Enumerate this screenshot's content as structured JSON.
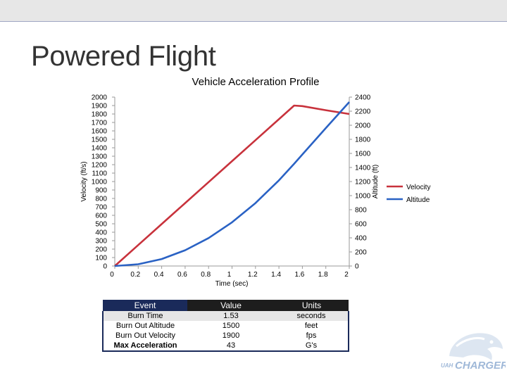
{
  "slide": {
    "title": "Powered Flight"
  },
  "colors": {
    "velocity": "#c8323c",
    "altitude": "#2a62c4",
    "table_header": "#1a2a5a"
  },
  "chart_data": {
    "type": "line",
    "title": "Vehicle Acceleration Profile",
    "xlabel": "Time (sec)",
    "ylabel": "Velocity (ft/s)",
    "y2label": "Altitude (ft)",
    "xlim": [
      0,
      2
    ],
    "ylim": [
      0,
      2000
    ],
    "y2lim": [
      0,
      2400
    ],
    "x_ticks": [
      "0",
      "0.2",
      "0.4",
      "0.6",
      "0.8",
      "1",
      "1.2",
      "1.4",
      "1.6",
      "1.8",
      "2"
    ],
    "y_ticks": [
      "0",
      "100",
      "200",
      "300",
      "400",
      "500",
      "600",
      "700",
      "800",
      "900",
      "1000",
      "1100",
      "1200",
      "1300",
      "1400",
      "1500",
      "1600",
      "1700",
      "1800",
      "1900",
      "2000"
    ],
    "y2_ticks": [
      "0",
      "200",
      "400",
      "600",
      "800",
      "1000",
      "1200",
      "1400",
      "1600",
      "1800",
      "2000",
      "2200",
      "2400"
    ],
    "legend_position": "right",
    "series": [
      {
        "name": "Velocity",
        "axis": "left",
        "x": [
          0,
          0.2,
          0.4,
          0.6,
          0.8,
          1.0,
          1.2,
          1.4,
          1.53,
          1.6,
          1.8,
          2.0
        ],
        "y": [
          0,
          248,
          497,
          745,
          993,
          1242,
          1490,
          1738,
          1900,
          1893,
          1845,
          1800
        ]
      },
      {
        "name": "Altitude",
        "axis": "right",
        "x": [
          0,
          0.2,
          0.4,
          0.6,
          0.8,
          1.0,
          1.2,
          1.4,
          1.53,
          1.6,
          1.8,
          2.0
        ],
        "y": [
          0,
          25,
          99,
          224,
          397,
          621,
          894,
          1217,
          1453,
          1585,
          1960,
          2330
        ]
      }
    ]
  },
  "events_table": {
    "headers": [
      "Event",
      "Value",
      "Units"
    ],
    "rows": [
      [
        "Burn Time",
        "1.53",
        "seconds"
      ],
      [
        "Burn Out Altitude",
        "1500",
        "feet"
      ],
      [
        "Burn Out Velocity",
        "1900",
        "fps"
      ],
      [
        "Max Acceleration",
        "43",
        "G's"
      ]
    ]
  },
  "logo": {
    "text": "CHARGERS",
    "subtext": "UAH"
  }
}
